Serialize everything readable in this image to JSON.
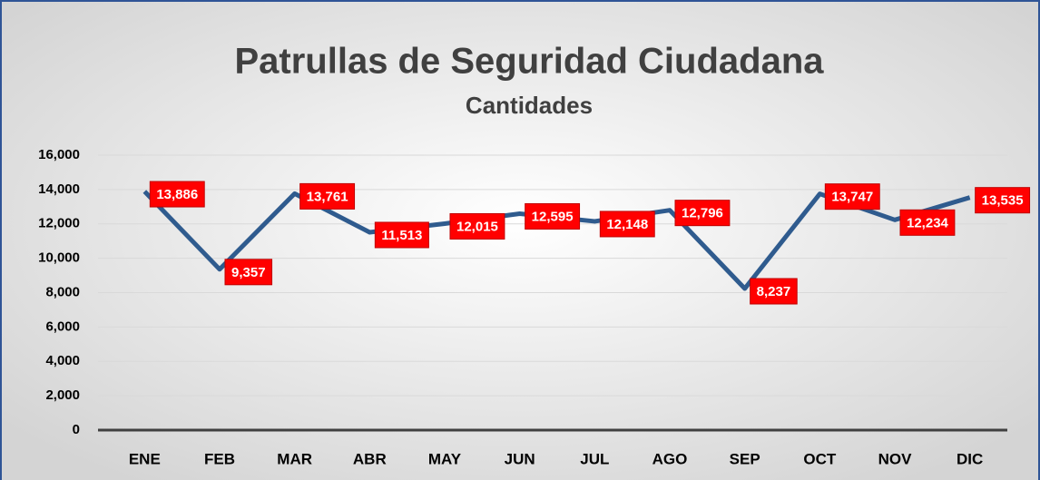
{
  "chart_data": {
    "type": "line",
    "title": "Patrullas de Seguridad Ciudadana",
    "subtitle": "Cantidades",
    "categories": [
      "ENE",
      "FEB",
      "MAR",
      "ABR",
      "MAY",
      "JUN",
      "JUL",
      "AGO",
      "SEP",
      "OCT",
      "NOV",
      "DIC"
    ],
    "series": [
      {
        "name": "Cantidades",
        "color": "#2f5b8e",
        "values": [
          13886,
          9357,
          13761,
          11513,
          12015,
          12595,
          12148,
          12796,
          8237,
          13747,
          12234,
          13535
        ],
        "value_labels": [
          "13,886",
          "9,357",
          "13,761",
          "11,513",
          "12,015",
          "12,595",
          "12,148",
          "12,796",
          "8,237",
          "13,747",
          "12,234",
          "13,535"
        ]
      }
    ],
    "ylim": [
      0,
      16000
    ],
    "yticks": [
      {
        "value": 0,
        "label": "0"
      },
      {
        "value": 2000,
        "label": "2,000"
      },
      {
        "value": 4000,
        "label": "4,000"
      },
      {
        "value": 6000,
        "label": "6,000"
      },
      {
        "value": 8000,
        "label": "8,000"
      },
      {
        "value": 10000,
        "label": "10,000"
      },
      {
        "value": 12000,
        "label": "12,000"
      },
      {
        "value": 14000,
        "label": "14,000"
      },
      {
        "value": 16000,
        "label": "16,000"
      }
    ],
    "grid": true,
    "label_color": "#ff0000"
  }
}
